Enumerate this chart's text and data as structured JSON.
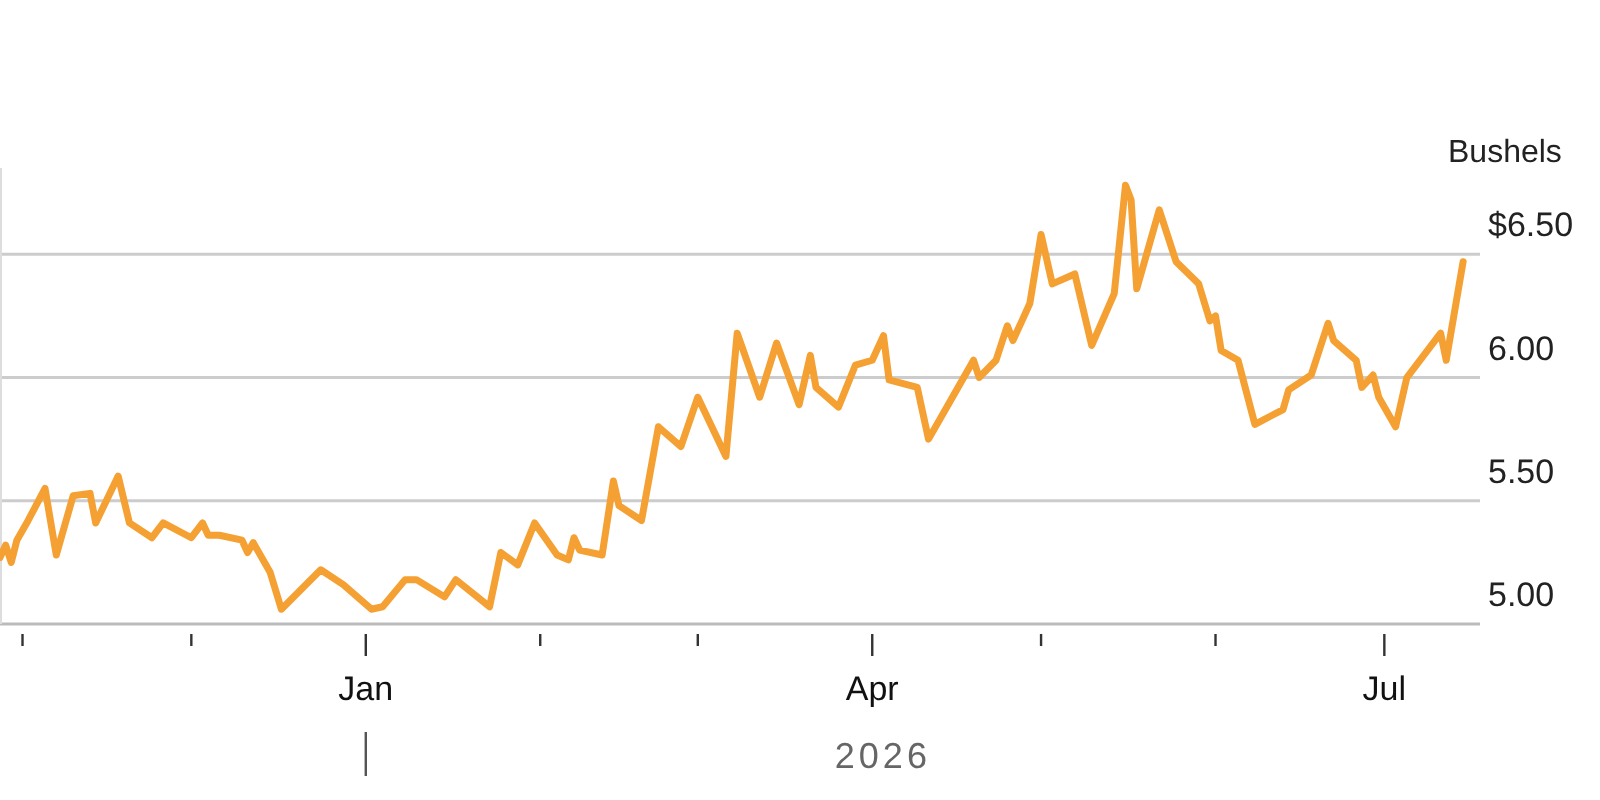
{
  "chart_data": {
    "type": "line",
    "ylabel": "Bushels",
    "annotations": [
      "2026"
    ],
    "grid": "y",
    "marker": "none",
    "line_style": "solid",
    "xlim": [
      "2025-10-28",
      "2026-07-18"
    ],
    "xticks": [
      {
        "value": "2025-11-01",
        "label": null
      },
      {
        "value": "2025-12-01",
        "label": null
      },
      {
        "value": "2026-01-01",
        "label": "Jan"
      },
      {
        "value": "2026-02-01",
        "label": null
      },
      {
        "value": "2026-03-01",
        "label": null
      },
      {
        "value": "2026-04-01",
        "label": "Apr"
      },
      {
        "value": "2026-05-01",
        "label": null
      },
      {
        "value": "2026-06-01",
        "label": null
      },
      {
        "value": "2026-07-01",
        "label": "Jul"
      }
    ],
    "ylim": [
      5,
      6.85
    ],
    "yticks": [
      {
        "value": 5,
        "label": "5.00"
      },
      {
        "value": 5.5,
        "label": "5.50"
      },
      {
        "value": 6,
        "label": "6.00"
      },
      {
        "value": 6.5,
        "label": "$6.50"
      }
    ],
    "x": [
      "2025-10-28",
      "2025-10-29",
      "2025-10-30",
      "2025-10-31",
      "2025-11-02",
      "2025-11-05",
      "2025-11-07",
      "2025-11-10",
      "2025-11-13",
      "2025-11-14",
      "2025-11-18",
      "2025-11-20",
      "2025-11-24",
      "2025-11-26",
      "2025-12-01",
      "2025-12-03",
      "2025-12-04",
      "2025-12-06",
      "2025-12-10",
      "2025-12-11",
      "2025-12-12",
      "2025-12-15",
      "2025-12-17",
      "2025-12-24",
      "2025-12-28",
      "2026-01-02",
      "2026-01-04",
      "2026-01-08",
      "2026-01-10",
      "2026-01-15",
      "2026-01-17",
      "2026-01-23",
      "2026-01-25",
      "2026-01-28",
      "2026-01-31",
      "2026-02-04",
      "2026-02-06",
      "2026-02-07",
      "2026-02-08",
      "2026-02-12",
      "2026-02-14",
      "2026-02-15",
      "2026-02-19",
      "2026-02-22",
      "2026-02-26",
      "2026-03-01",
      "2026-03-06",
      "2026-03-08",
      "2026-03-12",
      "2026-03-15",
      "2026-03-19",
      "2026-03-21",
      "2026-03-22",
      "2026-03-26",
      "2026-03-29",
      "2026-04-01",
      "2026-04-03",
      "2026-04-04",
      "2026-04-09",
      "2026-04-11",
      "2026-04-15",
      "2026-04-19",
      "2026-04-20",
      "2026-04-23",
      "2026-04-25",
      "2026-04-26",
      "2026-04-29",
      "2026-05-01",
      "2026-05-03",
      "2026-05-07",
      "2026-05-10",
      "2026-05-14",
      "2026-05-16",
      "2026-05-17",
      "2026-05-18",
      "2026-05-22",
      "2026-05-25",
      "2026-05-29",
      "2026-05-31",
      "2026-06-01",
      "2026-06-02",
      "2026-06-05",
      "2026-06-08",
      "2026-06-13",
      "2026-06-14",
      "2026-06-18",
      "2026-06-21",
      "2026-06-22",
      "2026-06-26",
      "2026-06-27",
      "2026-06-29",
      "2026-06-30",
      "2026-07-03",
      "2026-07-05",
      "2026-07-11",
      "2026-07-12",
      "2026-07-15"
    ],
    "series": [
      {
        "color": "#f5a033",
        "values": [
          5.27,
          5.32,
          5.25,
          5.34,
          5.42,
          5.55,
          5.28,
          5.52,
          5.53,
          5.41,
          5.6,
          5.41,
          5.35,
          5.41,
          5.35,
          5.41,
          5.36,
          5.36,
          5.34,
          5.29,
          5.33,
          5.21,
          5.06,
          5.22,
          5.16,
          5.06,
          5.07,
          5.18,
          5.18,
          5.11,
          5.18,
          5.07,
          5.29,
          5.24,
          5.41,
          5.28,
          5.26,
          5.35,
          5.3,
          5.28,
          5.58,
          5.48,
          5.42,
          5.8,
          5.72,
          5.92,
          5.68,
          6.18,
          5.92,
          6.14,
          5.89,
          6.09,
          5.96,
          5.88,
          6.05,
          6.07,
          6.17,
          5.99,
          5.96,
          5.75,
          5.91,
          6.07,
          6.0,
          6.07,
          6.21,
          6.15,
          6.3,
          6.58,
          6.38,
          6.42,
          6.13,
          6.34,
          6.78,
          6.72,
          6.36,
          6.68,
          6.47,
          6.38,
          6.23,
          6.25,
          6.11,
          6.07,
          5.81,
          5.87,
          5.95,
          6.01,
          6.22,
          6.15,
          6.07,
          5.96,
          6.01,
          5.92,
          5.8,
          6.0,
          6.18,
          6.07,
          6.47
        ]
      }
    ]
  }
}
